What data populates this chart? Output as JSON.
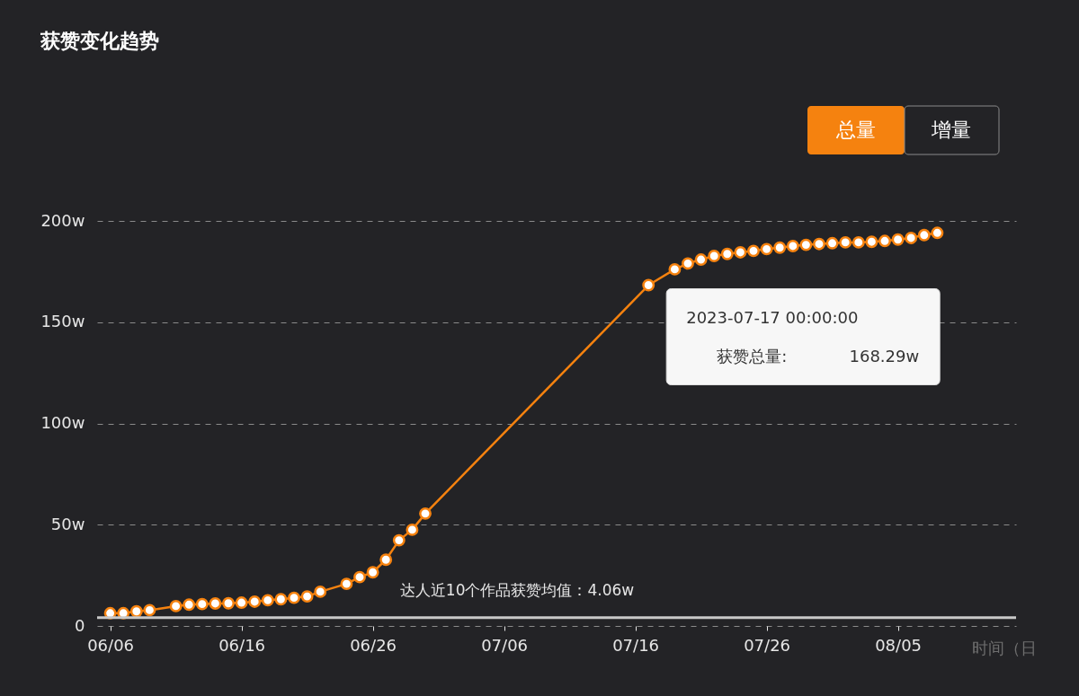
{
  "chart_data": {
    "type": "line",
    "title": "获赞变化趋势",
    "xlabel": "时间（日",
    "x": [
      "2023-06-06",
      "2023-06-07",
      "2023-06-08",
      "2023-06-09",
      "2023-06-11",
      "2023-06-12",
      "2023-06-13",
      "2023-06-14",
      "2023-06-15",
      "2023-06-16",
      "2023-06-17",
      "2023-06-18",
      "2023-06-19",
      "2023-06-20",
      "2023-06-21",
      "2023-06-22",
      "2023-06-24",
      "2023-06-25",
      "2023-06-26",
      "2023-06-27",
      "2023-06-28",
      "2023-06-29",
      "2023-06-30",
      "2023-07-17",
      "2023-07-19",
      "2023-07-20",
      "2023-07-21",
      "2023-07-22",
      "2023-07-23",
      "2023-07-24",
      "2023-07-25",
      "2023-07-26",
      "2023-07-27",
      "2023-07-28",
      "2023-07-29",
      "2023-07-30",
      "2023-07-31",
      "2023-08-01",
      "2023-08-02",
      "2023-08-03",
      "2023-08-04",
      "2023-08-05",
      "2023-08-06",
      "2023-08-07",
      "2023-08-08"
    ],
    "series": [
      {
        "color": "#f5820f",
        "values": [
          6.3,
          6.3,
          7.2,
          7.8,
          9.8,
          10.5,
          10.8,
          11.1,
          11.2,
          11.5,
          12.0,
          12.7,
          13.2,
          13.9,
          14.6,
          16.9,
          20.8,
          24.1,
          26.5,
          32.7,
          42.3,
          47.5,
          55.5,
          168.29,
          176.1,
          179.0,
          180.9,
          182.7,
          183.7,
          184.5,
          185.2,
          186.1,
          186.8,
          187.6,
          188.2,
          188.6,
          189.0,
          189.4,
          189.4,
          189.7,
          190.1,
          190.8,
          191.6,
          193.0,
          194.1
        ]
      }
    ],
    "xlim": [
      "2023-06-05",
      "2023-08-14"
    ],
    "xticks": [
      {
        "value": "2023-06-06",
        "label": "06/06"
      },
      {
        "value": "2023-06-16",
        "label": "06/16"
      },
      {
        "value": "2023-06-26",
        "label": "06/26"
      },
      {
        "value": "2023-07-06",
        "label": "07/06"
      },
      {
        "value": "2023-07-16",
        "label": "07/16"
      },
      {
        "value": "2023-07-26",
        "label": "07/26"
      },
      {
        "value": "2023-08-05",
        "label": "08/05"
      }
    ],
    "ylim": [
      0,
      200
    ],
    "yticks": [
      0,
      {
        "value": 50,
        "label": "50w"
      },
      {
        "value": 100,
        "label": "100w"
      },
      {
        "value": 150,
        "label": "150w"
      },
      {
        "value": 200,
        "label": "200w"
      }
    ],
    "ref_lines": [
      {
        "axis": "y",
        "value": 4.06,
        "label": "达人近10个作品获赞均值：4.06w",
        "color": "#c8c8c8"
      }
    ],
    "annotations": [
      {
        "text": "2023-07-17 00:00:00",
        "x": "2023-07-17",
        "y": 168.29
      },
      "获赞总量:",
      "168.29w",
      "总量",
      "增量"
    ],
    "grid": "y",
    "marker": "circle",
    "line_style": "solid"
  }
}
